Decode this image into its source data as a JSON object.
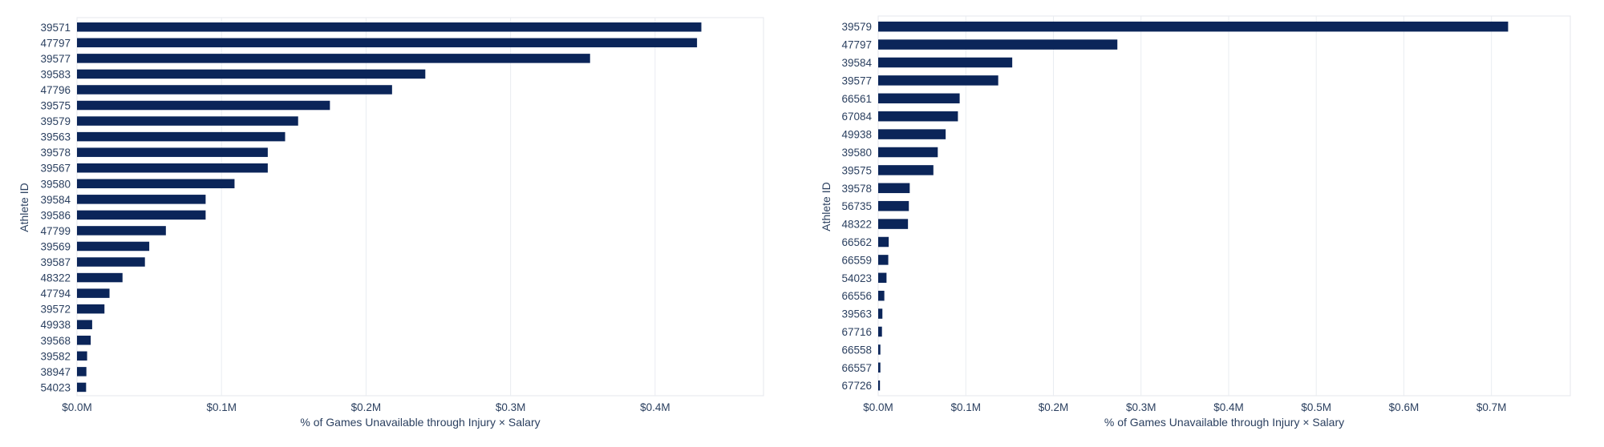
{
  "colors": {
    "bar": "#0b2559",
    "text": "#2a3f5f",
    "grid": "#e9ecf1"
  },
  "chart_data": [
    {
      "type": "bar",
      "orientation": "horizontal",
      "title": "",
      "xlabel": "% of Games Unavailable through Injury × Salary",
      "ylabel": "Athlete ID",
      "xlim": [
        0,
        475000
      ],
      "x_ticks": [
        0,
        100000,
        200000,
        300000,
        400000
      ],
      "x_tick_labels": [
        "$0.0M",
        "$0.1M",
        "$0.2M",
        "$0.3M",
        "$0.4M"
      ],
      "grid": true,
      "categories": [
        "39571",
        "47797",
        "39577",
        "39583",
        "47796",
        "39575",
        "39579",
        "39563",
        "39578",
        "39567",
        "39580",
        "39584",
        "39586",
        "47799",
        "39569",
        "39587",
        "48322",
        "47794",
        "39572",
        "49938",
        "39568",
        "39582",
        "38947",
        "54023"
      ],
      "values": [
        432000,
        429000,
        355000,
        241000,
        218000,
        175000,
        153000,
        144000,
        132000,
        132000,
        109000,
        89000,
        89000,
        61500,
        50000,
        47000,
        31500,
        22500,
        19000,
        10500,
        9500,
        7000,
        6500,
        6300
      ]
    },
    {
      "type": "bar",
      "orientation": "horizontal",
      "title": "",
      "xlabel": "% of Games Unavailable through Injury × Salary",
      "ylabel": "Athlete ID",
      "xlim": [
        0,
        790000
      ],
      "x_ticks": [
        0,
        100000,
        200000,
        300000,
        400000,
        500000,
        600000,
        700000
      ],
      "x_tick_labels": [
        "$0.0M",
        "$0.1M",
        "$0.2M",
        "$0.3M",
        "$0.4M",
        "$0.5M",
        "$0.6M",
        "$0.7M"
      ],
      "grid": true,
      "categories": [
        "39579",
        "47797",
        "39584",
        "39577",
        "66561",
        "67084",
        "49938",
        "39580",
        "39575",
        "39578",
        "56735",
        "48322",
        "66562",
        "66559",
        "54023",
        "66556",
        "39563",
        "67716",
        "66558",
        "66557",
        "67726"
      ],
      "values": [
        719000,
        273000,
        153000,
        137000,
        93000,
        91000,
        77000,
        68000,
        63000,
        36000,
        35000,
        34000,
        12000,
        11500,
        9500,
        7000,
        4800,
        4300,
        2500,
        2500,
        2000
      ]
    }
  ]
}
